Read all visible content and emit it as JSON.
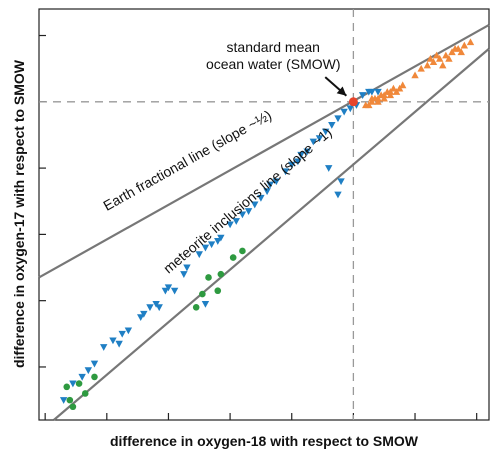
{
  "chart_data": {
    "type": "scatter",
    "xlabel": "difference in oxygen-18 with respect to SMOW",
    "ylabel": "difference in oxygen-17 with respect to SMOW",
    "xlim": [
      -51,
      22
    ],
    "ylim": [
      -48,
      14
    ],
    "grid": false,
    "reference_lines": {
      "x": 0,
      "y": 0,
      "style": "dashed"
    },
    "colors": {
      "earth_points": "#f0883a",
      "meteorite_points": "#1f7fc4",
      "chondrule_points": "#2e9a40",
      "smow_point": "#e8452c",
      "lines": "#777777"
    },
    "lines": [
      {
        "name": "earth-fractional-line",
        "label": "Earth fractional line (slope ~½)",
        "x1": -51,
        "y1": -26.5,
        "x2": 22,
        "y2": 11.6
      },
      {
        "name": "meteorite-inclusions-line",
        "label": "meteorite inclusions line (slope ~1)",
        "x1": -48.6,
        "y1": -48,
        "x2": 22,
        "y2": 8
      }
    ],
    "annotations": [
      {
        "lines": [
          "standard mean",
          "ocean water (SMOW)"
        ],
        "x": -13,
        "y": 7.5,
        "arrow_to": [
          0,
          0
        ]
      }
    ],
    "series": [
      {
        "marker": "triangle-down",
        "color": "#1f7fc4",
        "points": [
          [
            -47,
            -45
          ],
          [
            -45.5,
            -42.5
          ],
          [
            -44,
            -41.5
          ],
          [
            -43,
            -40.5
          ],
          [
            -42,
            -39.5
          ],
          [
            -40.5,
            -37
          ],
          [
            -39,
            -36
          ],
          [
            -38,
            -36.5
          ],
          [
            -37.5,
            -35
          ],
          [
            -36.5,
            -34.5
          ],
          [
            -34.5,
            -32.5
          ],
          [
            -34,
            -32
          ],
          [
            -33,
            -31
          ],
          [
            -32,
            -30.5
          ],
          [
            -31.5,
            -31
          ],
          [
            -30.5,
            -28.5
          ],
          [
            -30,
            -28
          ],
          [
            -29,
            -28.5
          ],
          [
            -27.5,
            -26
          ],
          [
            -27,
            -25
          ],
          [
            -25,
            -23
          ],
          [
            -24,
            -22
          ],
          [
            -23,
            -21.5
          ],
          [
            -22,
            -21
          ],
          [
            -21.5,
            -20.5
          ],
          [
            -20,
            -18.5
          ],
          [
            -19,
            -18
          ],
          [
            -18,
            -17
          ],
          [
            -17,
            -16.5
          ],
          [
            -16,
            -15.5
          ],
          [
            -15,
            -14.5
          ],
          [
            -14,
            -13.5
          ],
          [
            -13.5,
            -12.5
          ],
          [
            -12.5,
            -12
          ],
          [
            -11,
            -10.5
          ],
          [
            -10,
            -9.5
          ],
          [
            -9,
            -9
          ],
          [
            -8.5,
            -8
          ],
          [
            -7.5,
            -7.5
          ],
          [
            -6.5,
            -6
          ],
          [
            -5.5,
            -5.5
          ],
          [
            -4.5,
            -4.5
          ],
          [
            -3.5,
            -3.5
          ],
          [
            -2.5,
            -2.5
          ],
          [
            -1.5,
            -1.5
          ],
          [
            -0.5,
            -1
          ],
          [
            0.5,
            -0.5
          ],
          [
            1.5,
            1
          ],
          [
            2.5,
            1.5
          ],
          [
            3,
            1.5
          ],
          [
            4,
            1.5
          ],
          [
            -2,
            -12
          ],
          [
            -4,
            -10
          ],
          [
            -2.5,
            -14
          ],
          [
            -24,
            -30.5
          ]
        ]
      },
      {
        "marker": "triangle-up",
        "color": "#f0883a",
        "points": [
          [
            2,
            -0.5
          ],
          [
            2.5,
            -0.5
          ],
          [
            3,
            0
          ],
          [
            3.5,
            0.5
          ],
          [
            4,
            0.5
          ],
          [
            4.5,
            1
          ],
          [
            5,
            1
          ],
          [
            5.5,
            1.5
          ],
          [
            6,
            1.5
          ],
          [
            6.5,
            2
          ],
          [
            7,
            1.5
          ],
          [
            7.5,
            2
          ],
          [
            4,
            0
          ],
          [
            5,
            0.5
          ],
          [
            6,
            1
          ],
          [
            3,
            0.5
          ],
          [
            8,
            2.5
          ],
          [
            10,
            4
          ],
          [
            11,
            5
          ],
          [
            12,
            5.5
          ],
          [
            13,
            6
          ],
          [
            14,
            6.5
          ],
          [
            15,
            7
          ],
          [
            16,
            7.5
          ],
          [
            17,
            8
          ],
          [
            18,
            8.5
          ],
          [
            13.5,
            7
          ],
          [
            15.5,
            6.5
          ],
          [
            17.5,
            7.5
          ],
          [
            14.5,
            5.5
          ],
          [
            12.5,
            6.5
          ],
          [
            16.5,
            8
          ],
          [
            19,
            9
          ]
        ]
      },
      {
        "marker": "circle",
        "color": "#2e9a40",
        "points": [
          [
            -46.5,
            -43
          ],
          [
            -46,
            -45
          ],
          [
            -45.5,
            -46
          ],
          [
            -44.5,
            -42.5
          ],
          [
            -43.5,
            -44
          ],
          [
            -42,
            -41.5
          ],
          [
            -25.5,
            -31
          ],
          [
            -24.5,
            -29
          ],
          [
            -22,
            -28.5
          ],
          [
            -23.5,
            -26.5
          ],
          [
            -21.5,
            -26
          ],
          [
            -19.5,
            -23.5
          ],
          [
            -18,
            -22.5
          ]
        ]
      }
    ]
  }
}
